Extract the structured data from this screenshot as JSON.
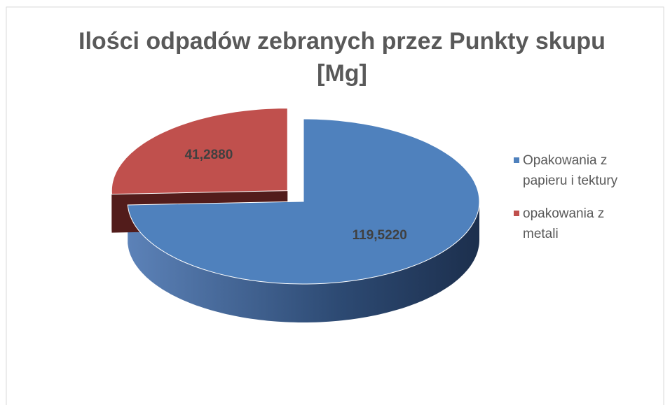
{
  "chart_data": {
    "type": "pie3d",
    "title": "Ilości odpadów zebranych przez Punkty skupu [Mg]",
    "categories": [
      "Opakowania z papieru i tektury",
      "opakowania z metali"
    ],
    "values": [
      119.522,
      41.288
    ],
    "value_labels": [
      "119,5220",
      "41,2880"
    ],
    "colors": [
      "#4f81bd",
      "#c0504d"
    ],
    "legend": "right"
  }
}
